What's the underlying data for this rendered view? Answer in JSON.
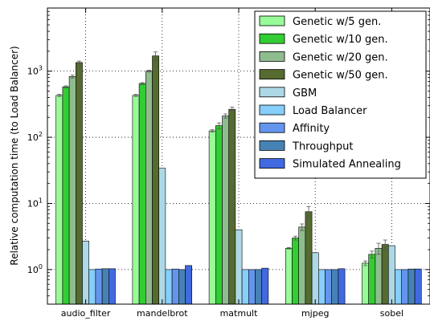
{
  "chart_data": {
    "type": "bar",
    "ylabel": "Relative computation time (to Load Balancer)",
    "yscale": "log",
    "ylim": [
      0.3,
      9000
    ],
    "yticks": [
      {
        "value": 1,
        "base": "10",
        "exp": "0"
      },
      {
        "value": 10,
        "base": "10",
        "exp": "1"
      },
      {
        "value": 100,
        "base": "10",
        "exp": "2"
      },
      {
        "value": 1000,
        "base": "10",
        "exp": "3"
      }
    ],
    "grid": true,
    "legend_position": "top-right",
    "categories": [
      "audio_filter",
      "mandelbrot",
      "matmult",
      "mjpeg",
      "sobel"
    ],
    "series": [
      {
        "name": "Genetic w/5 gen.",
        "color": "#98fb98",
        "values": [
          430,
          430,
          125,
          2.1,
          1.25
        ],
        "errors": [
          15,
          15,
          5,
          0.05,
          0.1
        ]
      },
      {
        "name": "Genetic w/10 gen.",
        "color": "#32cd32",
        "values": [
          580,
          650,
          150,
          3.0,
          1.7
        ],
        "errors": [
          20,
          20,
          15,
          0.2,
          0.2
        ]
      },
      {
        "name": "Genetic w/20 gen.",
        "color": "#8fbc8f",
        "values": [
          830,
          1000,
          210,
          4.4,
          2.1
        ],
        "errors": [
          40,
          30,
          15,
          0.5,
          0.4
        ]
      },
      {
        "name": "Genetic w/50 gen.",
        "color": "#556b2f",
        "values": [
          1350,
          1700,
          265,
          7.5,
          2.4
        ],
        "errors": [
          70,
          250,
          20,
          1.5,
          0.4
        ]
      },
      {
        "name": "GBM",
        "color": "#add8e6",
        "values": [
          2.7,
          34,
          4.0,
          1.8,
          2.3
        ],
        "errors": [
          0,
          0,
          0,
          0,
          0
        ]
      },
      {
        "name": "Load Balancer",
        "color": "#87cefa",
        "values": [
          1.0,
          1.0,
          1.0,
          1.0,
          1.0
        ],
        "errors": [
          0,
          0,
          0,
          0,
          0
        ]
      },
      {
        "name": "Affinity",
        "color": "#6495ed",
        "values": [
          1.02,
          1.02,
          1.0,
          1.0,
          1.0
        ],
        "errors": [
          0,
          0,
          0,
          0,
          0
        ]
      },
      {
        "name": "Throughput",
        "color": "#4682b4",
        "values": [
          1.03,
          1.0,
          1.0,
          1.0,
          1.02
        ],
        "errors": [
          0,
          0,
          0,
          0,
          0
        ]
      },
      {
        "name": "Simulated Annealing",
        "color": "#4169e1",
        "values": [
          1.03,
          1.15,
          1.05,
          1.03,
          1.02
        ],
        "errors": [
          0,
          0,
          0,
          0,
          0
        ]
      }
    ]
  }
}
